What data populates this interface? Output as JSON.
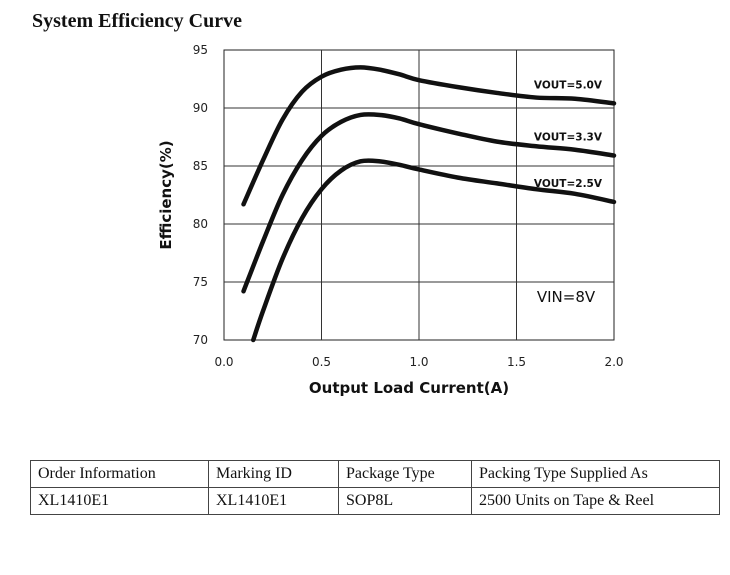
{
  "title": "System Efficiency Curve",
  "chart_data": {
    "type": "line",
    "xlabel": "Output Load Current(A)",
    "ylabel": "Efficiency(%)",
    "xlim": [
      0.0,
      2.0
    ],
    "ylim": [
      70,
      95
    ],
    "xticks": [
      "0.0",
      "0.5",
      "1.0",
      "1.5",
      "2.0"
    ],
    "yticks": [
      "70",
      "75",
      "80",
      "85",
      "90",
      "95"
    ],
    "grid": true,
    "annotation": "VIN=8V",
    "series": [
      {
        "name": "VOUT=5.0V",
        "x": [
          0.1,
          0.2,
          0.3,
          0.4,
          0.5,
          0.6,
          0.7,
          0.8,
          0.9,
          1.0,
          1.2,
          1.4,
          1.6,
          1.8,
          2.0
        ],
        "y": [
          81.7,
          85.5,
          89.0,
          91.4,
          92.7,
          93.3,
          93.5,
          93.3,
          92.9,
          92.4,
          91.8,
          91.3,
          90.9,
          90.8,
          90.4
        ]
      },
      {
        "name": "VOUT=3.3V",
        "x": [
          0.1,
          0.2,
          0.3,
          0.4,
          0.5,
          0.6,
          0.7,
          0.8,
          0.9,
          1.0,
          1.2,
          1.4,
          1.6,
          1.8,
          2.0
        ],
        "y": [
          74.2,
          78.5,
          82.5,
          85.5,
          87.6,
          88.8,
          89.4,
          89.4,
          89.1,
          88.6,
          87.8,
          87.1,
          86.7,
          86.4,
          85.9
        ]
      },
      {
        "name": "VOUT=2.5V",
        "x": [
          0.15,
          0.2,
          0.3,
          0.4,
          0.5,
          0.6,
          0.7,
          0.8,
          0.9,
          1.0,
          1.2,
          1.4,
          1.6,
          1.8,
          2.0
        ],
        "y": [
          70.0,
          72.5,
          77.0,
          80.5,
          83.0,
          84.6,
          85.4,
          85.4,
          85.1,
          84.7,
          84.0,
          83.5,
          83.0,
          82.6,
          81.9
        ]
      }
    ]
  },
  "table": {
    "headers": [
      "Order Information",
      "Marking ID",
      "Package Type",
      "Packing Type Supplied As"
    ],
    "rows": [
      [
        "XL1410E1",
        "XL1410E1",
        "SOP8L",
        "2500 Units on Tape & Reel"
      ]
    ]
  }
}
